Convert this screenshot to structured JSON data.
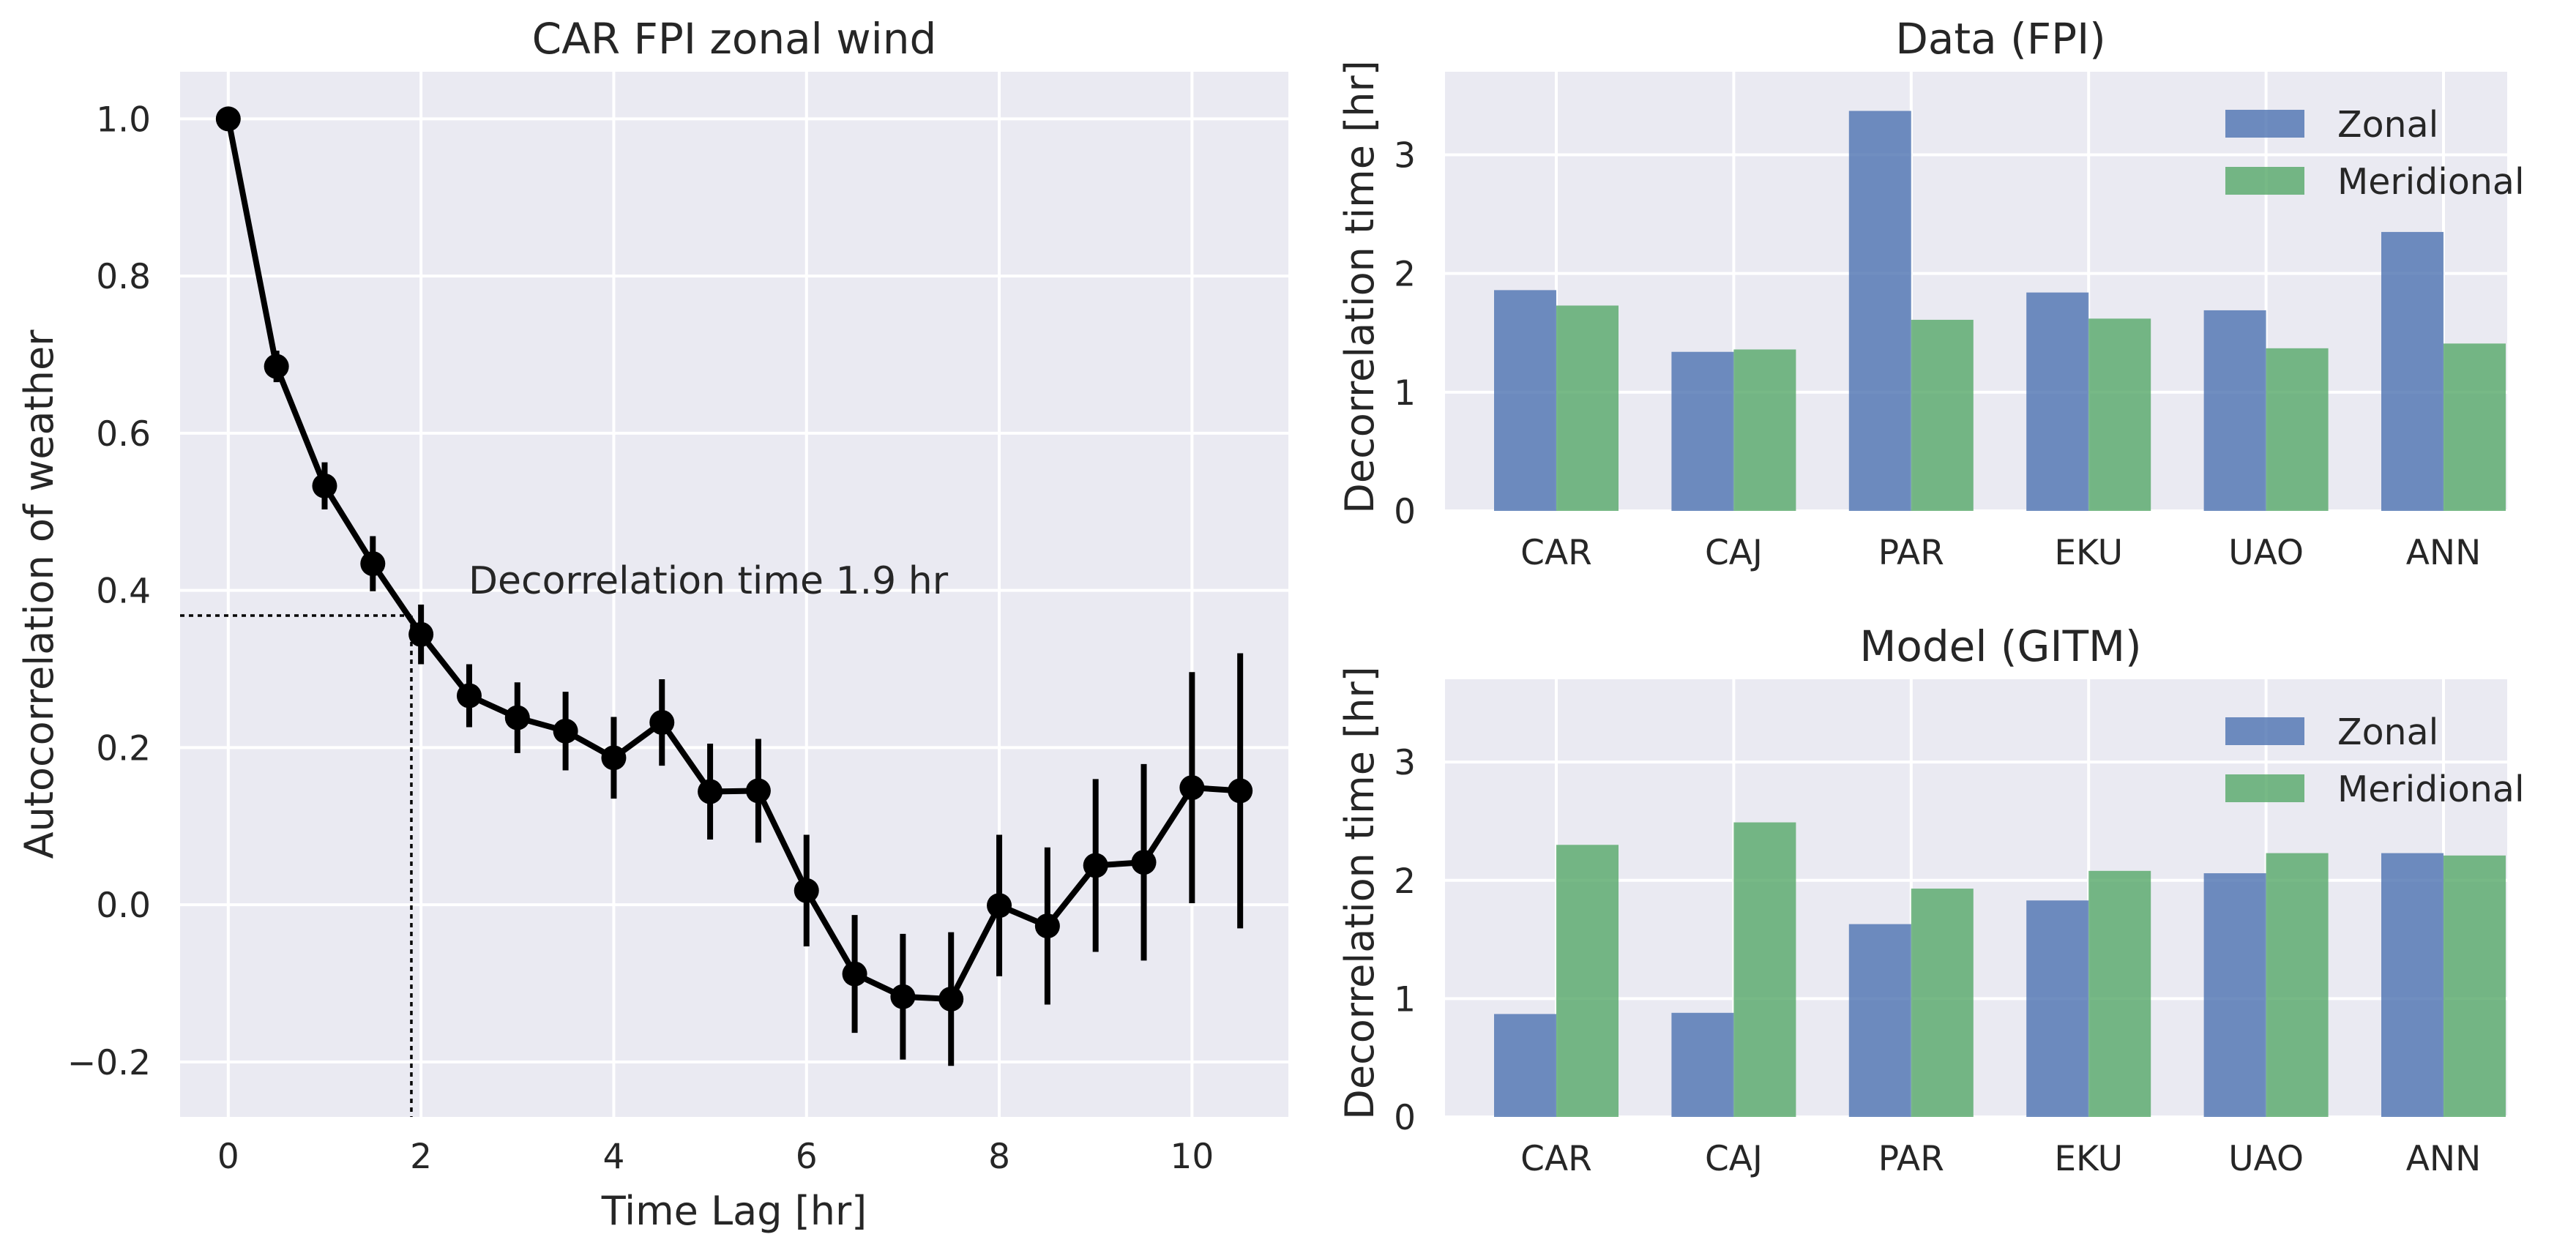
{
  "colors": {
    "panel_bg": "#EAEAF2",
    "grid": "#FFFFFF",
    "line": "#000000",
    "zonal": "#4C72B0",
    "meridional": "#55A868"
  },
  "chart_data": [
    {
      "type": "line",
      "title": "CAR FPI zonal wind",
      "xlabel": "Time Lag [hr]",
      "ylabel": "Autocorrelation of weather",
      "xlim": [
        -0.5,
        11
      ],
      "ylim": [
        -0.27,
        1.06
      ],
      "xticks": [
        0,
        2,
        4,
        6,
        8,
        10
      ],
      "yticks": [
        1.0,
        0.8,
        0.6,
        0.4,
        0.2,
        0.0,
        -0.2
      ],
      "ytick_labels": [
        "1.0",
        "0.8",
        "0.6",
        "0.4",
        "0.2",
        "0.0",
        "−0.2"
      ],
      "grid": true,
      "x": [
        0,
        0.5,
        1,
        1.5,
        2,
        2.5,
        3,
        3.5,
        4,
        4.5,
        5,
        5.5,
        6,
        6.5,
        7,
        7.5,
        8,
        8.5,
        9,
        9.5,
        10,
        10.5
      ],
      "y": [
        1.0,
        0.685,
        0.533,
        0.434,
        0.344,
        0.266,
        0.238,
        0.221,
        0.187,
        0.232,
        0.144,
        0.145,
        0.018,
        -0.088,
        -0.117,
        -0.12,
        -0.001,
        -0.027,
        0.05,
        0.054,
        0.149,
        0.145
      ],
      "yerr": [
        0,
        0.02,
        0.03,
        0.035,
        0.038,
        0.04,
        0.045,
        0.05,
        0.052,
        0.055,
        0.061,
        0.066,
        0.071,
        0.075,
        0.08,
        0.085,
        0.09,
        0.1,
        0.11,
        0.125,
        0.147,
        0.175
      ],
      "annotation": {
        "text": "Decorrelation time 1.9 hr",
        "x": 1.9,
        "y": 0.368
      }
    },
    {
      "type": "bar",
      "title": "Data (FPI)",
      "ylabel": "Decorrelation time [hr]",
      "categories": [
        "CAR",
        "CAJ",
        "PAR",
        "EKU",
        "UAO",
        "ANN"
      ],
      "ylim": [
        0,
        3.7
      ],
      "yticks": [
        0,
        1,
        2,
        3
      ],
      "legend": "top-right",
      "grid": true,
      "series": [
        {
          "name": "Zonal",
          "values": [
            1.86,
            1.34,
            3.37,
            1.84,
            1.69,
            2.35
          ]
        },
        {
          "name": "Meridional",
          "values": [
            1.73,
            1.36,
            1.61,
            1.62,
            1.37,
            1.41
          ]
        }
      ]
    },
    {
      "type": "bar",
      "title": "Model (GITM)",
      "ylabel": "Decorrelation time [hr]",
      "categories": [
        "CAR",
        "CAJ",
        "PAR",
        "EKU",
        "UAO",
        "ANN"
      ],
      "ylim": [
        0,
        3.7
      ],
      "yticks": [
        0,
        1,
        2,
        3
      ],
      "legend": "top-right",
      "grid": true,
      "series": [
        {
          "name": "Zonal",
          "values": [
            0.87,
            0.88,
            1.63,
            1.83,
            2.06,
            2.23
          ]
        },
        {
          "name": "Meridional",
          "values": [
            2.3,
            2.49,
            1.93,
            2.08,
            2.23,
            2.21
          ]
        }
      ]
    }
  ]
}
